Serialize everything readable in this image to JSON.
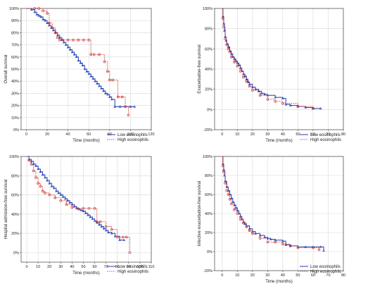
{
  "colors": {
    "low": "#1f3fb0",
    "high": "#d02020",
    "grid": "#d8d8d8",
    "frame": "#444444"
  },
  "chart_data": [
    {
      "type": "line",
      "xlabel": "Time (months)",
      "ylabel": "Overall survival",
      "xlim": [
        -5,
        120
      ],
      "ylim": [
        0,
        100
      ],
      "xticks": [
        "0",
        "20",
        "40",
        "60",
        "80",
        "100",
        "120"
      ],
      "yticks": [
        "0%",
        "10%",
        "20%",
        "30%",
        "40%",
        "50%",
        "60%",
        "70%",
        "80%",
        "90%",
        "100%"
      ],
      "legend_position": "bottom-right",
      "grid": true,
      "series": [
        {
          "name": "Low eosinophils",
          "style": "solid",
          "x": [
            0,
            5,
            8,
            10,
            12,
            14,
            16,
            18,
            20,
            22,
            24,
            26,
            28,
            30,
            32,
            34,
            36,
            38,
            40,
            42,
            44,
            46,
            48,
            50,
            52,
            54,
            56,
            58,
            60,
            62,
            64,
            66,
            68,
            70,
            72,
            74,
            76,
            78,
            80,
            82,
            85,
            90,
            100,
            104
          ],
          "y": [
            100,
            99,
            97,
            95,
            94,
            93,
            91,
            90,
            88,
            86,
            84,
            82,
            80,
            78,
            76,
            74,
            72,
            70,
            68,
            66,
            64,
            62,
            60,
            57,
            55,
            53,
            50,
            48,
            46,
            44,
            42,
            40,
            38,
            36,
            34,
            32,
            30,
            29,
            27,
            25,
            19,
            19,
            19,
            19
          ]
        },
        {
          "name": "High eosinophils",
          "style": "dashed",
          "x": [
            0,
            8,
            12,
            16,
            20,
            22,
            25,
            28,
            30,
            32,
            35,
            40,
            45,
            50,
            55,
            60,
            62,
            65,
            70,
            75,
            78,
            80,
            83,
            88,
            92,
            95,
            98
          ],
          "y": [
            100,
            100,
            100,
            98,
            96,
            88,
            84,
            80,
            76,
            74,
            74,
            74,
            74,
            74,
            74,
            74,
            62,
            62,
            62,
            56,
            48,
            41,
            41,
            27,
            27,
            19,
            12
          ]
        }
      ]
    },
    {
      "type": "line",
      "xlabel": "Time (months)",
      "ylabel": "Exacerbation-free survival",
      "xlim": [
        -5,
        80
      ],
      "ylim": [
        -20,
        100
      ],
      "xticks": [
        "0",
        "10",
        "20",
        "30",
        "40",
        "50",
        "60",
        "70",
        "80"
      ],
      "yticks": [
        "-20%",
        "0%",
        "20%",
        "40%",
        "60%",
        "80%",
        "100%"
      ],
      "legend_position": "bottom-right",
      "grid": true,
      "series": [
        {
          "name": "Low eosinophils",
          "style": "solid",
          "x": [
            0,
            0.5,
            1,
            1.5,
            2,
            2.5,
            3,
            4,
            5,
            6,
            7,
            8,
            9,
            10,
            11,
            12,
            13,
            14,
            15,
            16,
            17,
            18,
            20,
            22,
            24,
            26,
            28,
            30,
            35,
            40,
            42,
            45,
            50,
            55,
            60,
            65
          ],
          "y": [
            100,
            92,
            85,
            78,
            72,
            68,
            65,
            62,
            58,
            55,
            52,
            50,
            48,
            46,
            44,
            41,
            38,
            35,
            33,
            30,
            27,
            25,
            22,
            20,
            18,
            16,
            15,
            14,
            12,
            11,
            5,
            4,
            3,
            2,
            1,
            1
          ]
        },
        {
          "name": "High eosinophils",
          "style": "dashed",
          "x": [
            0,
            0.5,
            1,
            2,
            3,
            4,
            5,
            6,
            8,
            10,
            12,
            14,
            16,
            18,
            20,
            25,
            30,
            35,
            40,
            50,
            60
          ],
          "y": [
            100,
            90,
            82,
            70,
            64,
            60,
            57,
            52,
            47,
            43,
            38,
            32,
            28,
            23,
            19,
            14,
            10,
            8,
            6,
            3,
            1
          ]
        }
      ]
    },
    {
      "type": "line",
      "xlabel": "Time (months)",
      "ylabel": "Hospital admission-free survival",
      "xlim": [
        -5,
        110
      ],
      "ylim": [
        -10,
        100
      ],
      "xticks": [
        "0",
        "10",
        "20",
        "30",
        "40",
        "50",
        "60",
        "70",
        "80",
        "90",
        "100",
        "110"
      ],
      "yticks": [
        "0%",
        "20%",
        "40%",
        "60%",
        "80%",
        "100%"
      ],
      "legend_position": "bottom-right",
      "grid": true,
      "series": [
        {
          "name": "Low eosinophils",
          "style": "solid",
          "x": [
            0,
            2,
            4,
            6,
            8,
            10,
            12,
            14,
            16,
            18,
            20,
            22,
            24,
            26,
            28,
            30,
            32,
            34,
            36,
            38,
            40,
            42,
            44,
            46,
            48,
            50,
            52,
            54,
            56,
            58,
            60,
            62,
            64,
            66,
            68,
            70,
            72,
            75,
            78,
            82,
            86
          ],
          "y": [
            100,
            97,
            95,
            92,
            90,
            87,
            84,
            81,
            78,
            75,
            72,
            69,
            67,
            64,
            62,
            60,
            58,
            56,
            54,
            52,
            50,
            48,
            46,
            45,
            44,
            43,
            41,
            39,
            37,
            35,
            33,
            31,
            29,
            27,
            25,
            23,
            21,
            20,
            17,
            13,
            13
          ]
        },
        {
          "name": "High eosinophils",
          "style": "dashed",
          "x": [
            0,
            2,
            4,
            6,
            8,
            10,
            12,
            14,
            16,
            20,
            25,
            30,
            35,
            40,
            45,
            50,
            55,
            60,
            62,
            65,
            70,
            75,
            80,
            85,
            88,
            91
          ],
          "y": [
            100,
            96,
            92,
            85,
            78,
            72,
            69,
            64,
            62,
            60,
            57,
            54,
            50,
            47,
            46,
            46,
            46,
            46,
            32,
            32,
            27,
            24,
            16,
            16,
            16,
            0
          ]
        }
      ]
    },
    {
      "type": "line",
      "xlabel": "Time (months)",
      "ylabel": "Infective exacerbation-free survival",
      "xlim": [
        -5,
        80
      ],
      "ylim": [
        -20,
        100
      ],
      "xticks": [
        "0",
        "10",
        "20",
        "30",
        "40",
        "50",
        "60",
        "70",
        "80"
      ],
      "yticks": [
        "-20%",
        "0%",
        "20%",
        "40%",
        "60%",
        "80%",
        "100%"
      ],
      "legend_position": "bottom-right",
      "grid": true,
      "series": [
        {
          "name": "Low eosinophils",
          "style": "solid",
          "x": [
            0,
            0.5,
            1,
            1.5,
            2,
            3,
            4,
            5,
            6,
            7,
            8,
            9,
            10,
            11,
            12,
            13,
            14,
            15,
            16,
            18,
            20,
            22,
            25,
            28,
            30,
            32,
            35,
            40,
            42,
            45,
            50,
            55,
            60,
            65,
            67
          ],
          "y": [
            100,
            92,
            86,
            80,
            74,
            68,
            64,
            60,
            56,
            52,
            49,
            46,
            43,
            40,
            37,
            34,
            31,
            29,
            27,
            24,
            21,
            19,
            17,
            15,
            14,
            13,
            12,
            11,
            7,
            6,
            5,
            5,
            5,
            5,
            1
          ]
        },
        {
          "name": "High eosinophils",
          "style": "dashed",
          "x": [
            0,
            0.5,
            1,
            2,
            3,
            4,
            5,
            6,
            8,
            10,
            12,
            14,
            16,
            18,
            20,
            25,
            30,
            35,
            40,
            45,
            50,
            60,
            64
          ],
          "y": [
            100,
            90,
            84,
            72,
            64,
            60,
            55,
            50,
            44,
            40,
            34,
            30,
            26,
            22,
            19,
            14,
            10,
            10,
            8,
            6,
            4,
            4,
            2
          ]
        }
      ]
    }
  ]
}
